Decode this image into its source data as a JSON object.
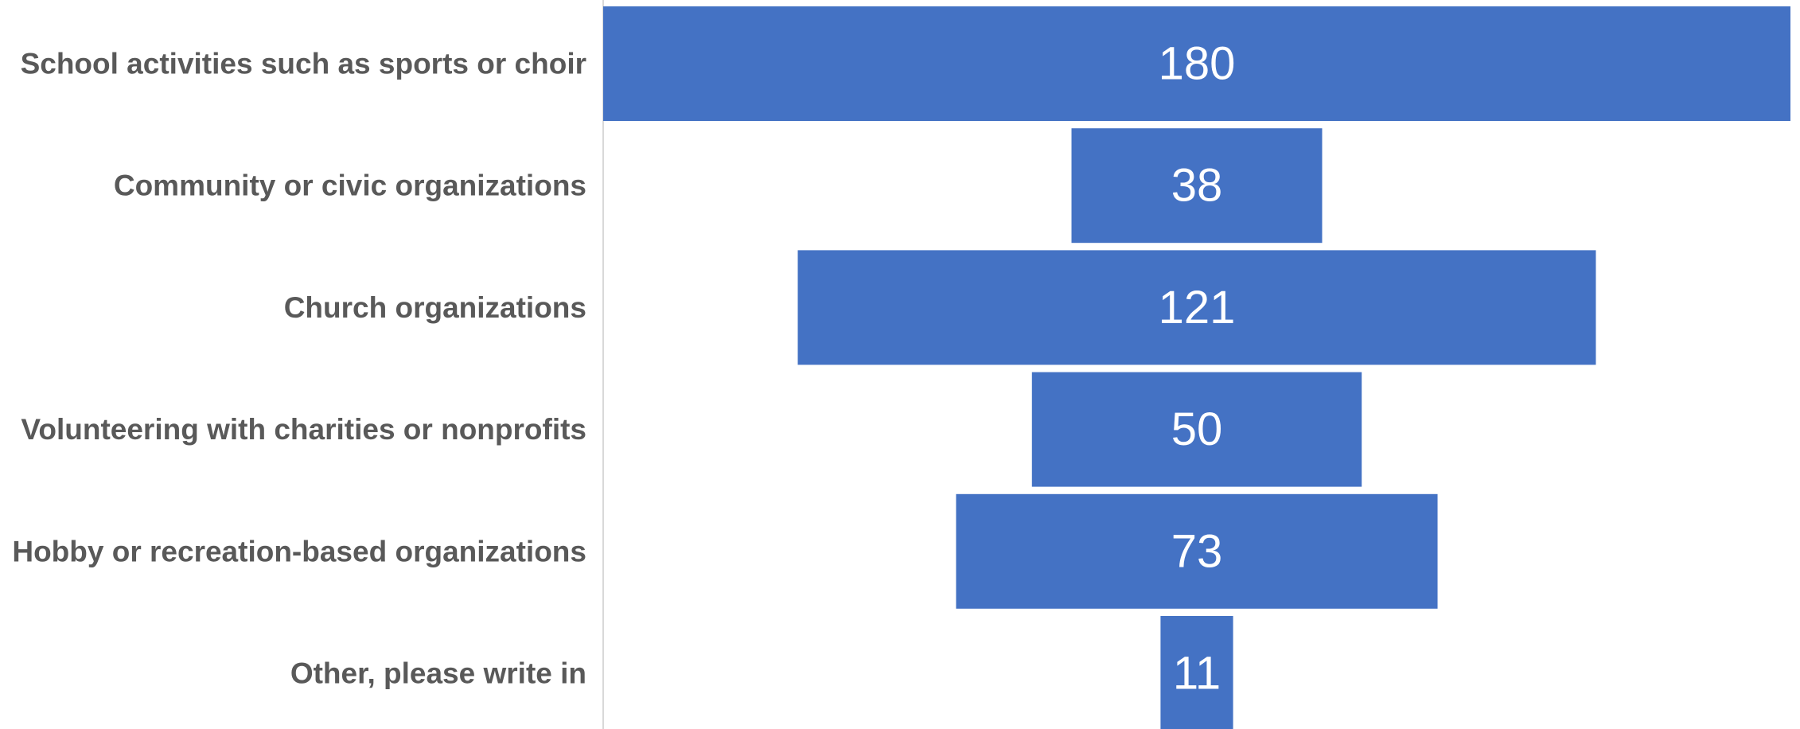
{
  "chart_data": {
    "type": "bar",
    "subtype": "funnel",
    "orientation": "horizontal",
    "categories": [
      "School activities such as sports or choir",
      "Community or civic organizations",
      "Church organizations",
      "Volunteering with charities or nonprofits",
      "Hobby or recreation-based organizations",
      "Other, please write in"
    ],
    "values": [
      180,
      38,
      121,
      50,
      73,
      11
    ],
    "data_labels": [
      "180",
      "38",
      "121",
      "50",
      "73",
      "11"
    ],
    "xlim": [
      0,
      180
    ],
    "bar_color": "#4472C4",
    "label_color": "#595959",
    "data_label_color": "#ffffff",
    "axis_color": "#D9D9D9",
    "grid": false,
    "legend": "none"
  }
}
